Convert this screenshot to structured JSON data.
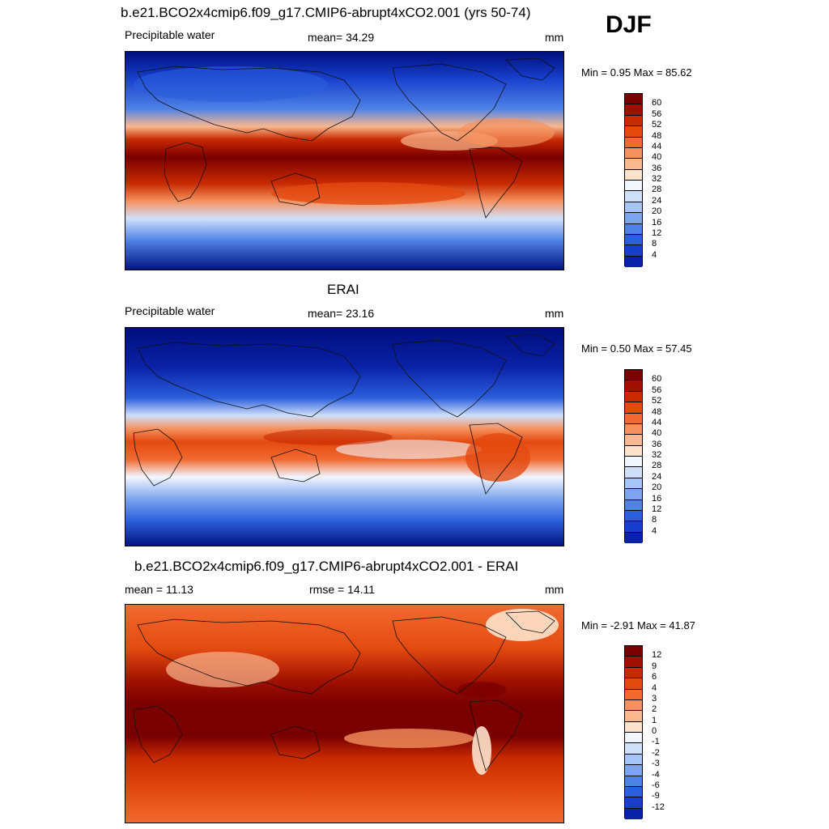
{
  "season": "DJF",
  "panels": [
    {
      "title": "b.e21.BCO2x4cmip6.f09_g17.CMIP6-abrupt4xCO2.001 (yrs 50-74)",
      "left_label": "Precipitable water",
      "center_label": "mean=  34.29",
      "units": "mm",
      "minmax": "Min =   0.95 Max =  85.62",
      "colorbar_labels": [
        "60",
        "56",
        "52",
        "48",
        "44",
        "40",
        "36",
        "32",
        "28",
        "24",
        "20",
        "16",
        "12",
        "8",
        "4"
      ]
    },
    {
      "title": "ERAI",
      "left_label": "Precipitable water",
      "center_label": "mean=  23.16",
      "units": "mm",
      "minmax": "Min =   0.50 Max =  57.45",
      "colorbar_labels": [
        "60",
        "56",
        "52",
        "48",
        "44",
        "40",
        "36",
        "32",
        "28",
        "24",
        "20",
        "16",
        "12",
        "8",
        "4"
      ]
    },
    {
      "title": "b.e21.BCO2x4cmip6.f09_g17.CMIP6-abrupt4xCO2.001 - ERAI",
      "left_label": "mean =  11.13",
      "center_label": "rmse =  14.11",
      "units": "mm",
      "minmax": "Min =  -2.91 Max =  41.87",
      "colorbar_labels": [
        "12",
        "9",
        "6",
        "4",
        "3",
        "2",
        "1",
        "0",
        "-1",
        "-2",
        "-3",
        "-4",
        "-6",
        "-9",
        "-12"
      ]
    }
  ],
  "colors": {
    "scale": [
      "#7a0000",
      "#a01000",
      "#c82a00",
      "#e34a10",
      "#f26a30",
      "#f5915e",
      "#f8b890",
      "#fde3cc",
      "#f2f7ff",
      "#cfe0fb",
      "#a6c4f5",
      "#7ca5ee",
      "#4f82e6",
      "#2c5fdc",
      "#173fcc",
      "#0a22a8",
      "#000e7c"
    ],
    "diff_scale": [
      "#7a0000",
      "#a01000",
      "#c82a00",
      "#e34a10",
      "#f26a30",
      "#f5915e",
      "#f8b890",
      "#fde3cc",
      "#f2f7ff",
      "#cfe0fb",
      "#a6c4f5",
      "#7ca5ee",
      "#4f82e6",
      "#2c5fdc",
      "#173fcc",
      "#0a22a8"
    ]
  }
}
